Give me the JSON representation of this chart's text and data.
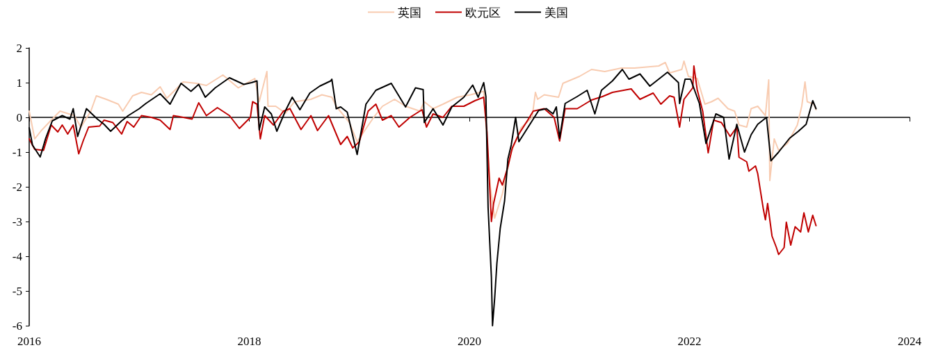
{
  "chart_data": {
    "type": "line",
    "legend": "top",
    "xlim": [
      2016,
      2024
    ],
    "xticks": [
      2016,
      2018,
      2020,
      2022,
      2024
    ],
    "ylim": [
      -6,
      2
    ],
    "yticks": [
      -6,
      -5,
      -4,
      -3,
      -2,
      -1,
      0,
      1,
      2
    ],
    "series": [
      {
        "name": "英国",
        "color": "#f8cbb0",
        "x": [
          2016,
          2016.05,
          2016.11,
          2016.2,
          2016.28,
          2016.41,
          2016.47,
          2016.56,
          2016.61,
          2016.7,
          2016.81,
          2016.85,
          2016.94,
          2017.02,
          2017.11,
          2017.19,
          2017.25,
          2017.4,
          2017.52,
          2017.61,
          2017.76,
          2017.9,
          2018.05,
          2018.09,
          2018.16,
          2018.17,
          2018.24,
          2018.33,
          2018.41,
          2018.56,
          2018.66,
          2018.75,
          2018.79,
          2018.91,
          2018.98,
          2019.04,
          2019.13,
          2019.21,
          2019.32,
          2019.42,
          2019.55,
          2019.59,
          2019.67,
          2019.76,
          2019.89,
          2020.01,
          2020.13,
          2020.19,
          2020.23,
          2020.3,
          2020.38,
          2020.47,
          2020.57,
          2020.6,
          2020.62,
          2020.68,
          2020.81,
          2020.85,
          2021,
          2021.11,
          2021.23,
          2021.38,
          2021.5,
          2021.72,
          2021.78,
          2021.82,
          2021.93,
          2021.95,
          2021.99,
          2022.07,
          2022.14,
          2022.2,
          2022.26,
          2022.35,
          2022.41,
          2022.45,
          2022.52,
          2022.56,
          2022.62,
          2022.69,
          2022.72,
          2022.73,
          2022.77,
          2022.81,
          2022.89,
          2022.98,
          2023.02,
          2023.05,
          2023.07,
          2023.13,
          2023.15
        ],
        "values": [
          0.18,
          -0.62,
          -0.38,
          -0.08,
          0.18,
          0.05,
          -0.28,
          0.18,
          0.62,
          0.52,
          0.38,
          0.18,
          0.62,
          0.72,
          0.65,
          0.88,
          0.55,
          1.02,
          0.98,
          0.92,
          1.22,
          0.85,
          1.12,
          0.45,
          1.32,
          0.32,
          0.32,
          0.12,
          0.45,
          0.52,
          0.65,
          0.58,
          0.32,
          -0.15,
          -0.7,
          -0.42,
          0,
          0.32,
          0.52,
          0.32,
          0.18,
          0.45,
          0.25,
          0.38,
          0.58,
          0.65,
          0.75,
          -2,
          -2.9,
          -2.2,
          -1,
          -0.3,
          0,
          0.72,
          0.52,
          0.65,
          0.58,
          0.98,
          1.18,
          1.38,
          1.32,
          1.42,
          1.42,
          1.48,
          1.58,
          1.28,
          1.38,
          1.62,
          1.18,
          1.12,
          0.38,
          0.45,
          0.55,
          0.25,
          0.18,
          -0.22,
          -0.28,
          0.25,
          0.32,
          0.05,
          1.08,
          -1.82,
          -0.62,
          -0.95,
          -0.75,
          -0.22,
          0.32,
          1.02,
          0.45,
          0.38,
          0.22
        ]
      },
      {
        "name": "欧元区",
        "color": "#c00000",
        "x": [
          2016,
          2016.05,
          2016.13,
          2016.2,
          2016.26,
          2016.3,
          2016.35,
          2016.4,
          2016.45,
          2016.49,
          2016.54,
          2016.64,
          2016.68,
          2016.76,
          2016.84,
          2016.89,
          2016.95,
          2017.02,
          2017.11,
          2017.19,
          2017.28,
          2017.31,
          2017.4,
          2017.48,
          2017.54,
          2017.61,
          2017.71,
          2017.82,
          2017.91,
          2018.01,
          2018.03,
          2018.07,
          2018.1,
          2018.14,
          2018.22,
          2018.31,
          2018.37,
          2018.47,
          2018.56,
          2018.62,
          2018.72,
          2018.79,
          2018.83,
          2018.89,
          2018.94,
          2019,
          2019.08,
          2019.15,
          2019.21,
          2019.29,
          2019.36,
          2019.46,
          2019.57,
          2019.61,
          2019.67,
          2019.76,
          2019.84,
          2019.95,
          2020.05,
          2020.13,
          2020.16,
          2020.2,
          2020.22,
          2020.27,
          2020.3,
          2020.35,
          2020.39,
          2020.45,
          2020.53,
          2020.58,
          2020.68,
          2020.77,
          2020.82,
          2020.87,
          2020.98,
          2021.11,
          2021.21,
          2021.3,
          2021.47,
          2021.55,
          2021.67,
          2021.74,
          2021.82,
          2021.86,
          2021.91,
          2021.95,
          2022.03,
          2022.04,
          2022.07,
          2022.12,
          2022.17,
          2022.22,
          2022.29,
          2022.37,
          2022.43,
          2022.45,
          2022.52,
          2022.54,
          2022.6,
          2022.62,
          2022.67,
          2022.69,
          2022.71,
          2022.75,
          2022.79,
          2022.81,
          2022.86,
          2022.88,
          2022.92,
          2022.96,
          2023.01,
          2023.04,
          2023.08,
          2023.12,
          2023.15
        ],
        "values": [
          -0.62,
          -0.92,
          -0.95,
          -0.22,
          -0.42,
          -0.22,
          -0.48,
          -0.22,
          -1.05,
          -0.68,
          -0.28,
          -0.25,
          -0.08,
          -0.15,
          -0.48,
          -0.12,
          -0.28,
          0.05,
          0,
          -0.08,
          -0.35,
          0.05,
          0,
          -0.05,
          0.42,
          0.05,
          0.28,
          0.05,
          -0.32,
          0,
          0.45,
          0.38,
          -0.62,
          0.05,
          -0.22,
          0.18,
          0.25,
          -0.35,
          0.05,
          -0.38,
          0.05,
          -0.48,
          -0.78,
          -0.55,
          -0.88,
          -0.7,
          0.18,
          0.38,
          -0.08,
          0.05,
          -0.28,
          0,
          0.22,
          -0.28,
          0.1,
          0,
          0.32,
          0.32,
          0.48,
          0.58,
          -0.42,
          -3,
          -2.48,
          -1.75,
          -1.95,
          -1.42,
          -0.88,
          -0.48,
          -0.08,
          0.18,
          0.25,
          0,
          -0.68,
          0.25,
          0.25,
          0.5,
          0.6,
          0.72,
          0.82,
          0.52,
          0.7,
          0.38,
          0.62,
          0.58,
          -0.28,
          0.52,
          0.85,
          1.48,
          0.8,
          0.18,
          -1.02,
          -0.08,
          -0.15,
          -0.55,
          -0.28,
          -1.15,
          -1.28,
          -1.55,
          -1.4,
          -1.62,
          -2.62,
          -2.95,
          -2.48,
          -3.42,
          -3.75,
          -3.95,
          -3.75,
          -3.02,
          -3.68,
          -3.15,
          -3.3,
          -2.75,
          -3.3,
          -2.82,
          -3.12
        ]
      },
      {
        "name": "美国",
        "color": "#000000",
        "x": [
          2016,
          2016.03,
          2016.1,
          2016.15,
          2016.21,
          2016.3,
          2016.37,
          2016.4,
          2016.44,
          2016.52,
          2016.62,
          2016.68,
          2016.74,
          2016.84,
          2016.9,
          2017,
          2017.06,
          2017.19,
          2017.28,
          2017.38,
          2017.47,
          2017.54,
          2017.6,
          2017.69,
          2017.82,
          2017.95,
          2018.02,
          2018.07,
          2018.09,
          2018.14,
          2018.2,
          2018.25,
          2018.33,
          2018.39,
          2018.46,
          2018.55,
          2018.64,
          2018.74,
          2018.75,
          2018.79,
          2018.83,
          2018.89,
          2018.98,
          2019.06,
          2019.15,
          2019.29,
          2019.42,
          2019.51,
          2019.58,
          2019.59,
          2019.67,
          2019.76,
          2019.84,
          2019.95,
          2020.03,
          2020.08,
          2020.13,
          2020.15,
          2020.17,
          2020.2,
          2020.21,
          2020.23,
          2020.25,
          2020.28,
          2020.32,
          2020.35,
          2020.38,
          2020.42,
          2020.45,
          2020.51,
          2020.57,
          2020.63,
          2020.7,
          2020.76,
          2020.79,
          2020.82,
          2020.87,
          2020.98,
          2021.07,
          2021.14,
          2021.2,
          2021.3,
          2021.39,
          2021.45,
          2021.55,
          2021.64,
          2021.8,
          2021.9,
          2021.91,
          2021.96,
          2022.01,
          2022.09,
          2022.15,
          2022.24,
          2022.31,
          2022.36,
          2022.43,
          2022.5,
          2022.56,
          2022.62,
          2022.7,
          2022.74,
          2022.81,
          2022.91,
          2022.99,
          2023.06,
          2023.12,
          2023.15
        ],
        "values": [
          -0.3,
          -0.8,
          -1.14,
          -0.6,
          -0.1,
          0.05,
          -0.05,
          0.25,
          -0.55,
          0.25,
          -0.05,
          -0.2,
          -0.4,
          -0.1,
          0.05,
          0.25,
          0.4,
          0.68,
          0.38,
          0.98,
          0.75,
          0.95,
          0.58,
          0.85,
          1.14,
          0.95,
          1,
          1.05,
          -0.36,
          0.3,
          0.1,
          -0.4,
          0.2,
          0.58,
          0.22,
          0.7,
          0.9,
          1.05,
          1.1,
          0.25,
          0.3,
          0.15,
          -1.07,
          0.38,
          0.78,
          0.98,
          0.3,
          0.85,
          0.8,
          -0.15,
          0.25,
          -0.22,
          0.3,
          0.58,
          0.93,
          0.58,
          1,
          0.6,
          -2.6,
          -4.6,
          -6,
          -5.2,
          -4.2,
          -3.2,
          -2.4,
          -1.2,
          -0.8,
          0,
          -0.7,
          -0.4,
          -0.1,
          0.2,
          0.25,
          0.1,
          0.3,
          -0.6,
          0.4,
          0.6,
          0.78,
          0.1,
          0.78,
          1.05,
          1.38,
          1.1,
          1.25,
          0.9,
          1.3,
          1,
          0.4,
          1.1,
          1.1,
          0.4,
          -0.75,
          0.1,
          0,
          -1.2,
          -0.2,
          -1,
          -0.5,
          -0.2,
          0,
          -1.25,
          -1,
          -0.6,
          -0.4,
          -0.2,
          0.48,
          0.25
        ]
      }
    ]
  }
}
